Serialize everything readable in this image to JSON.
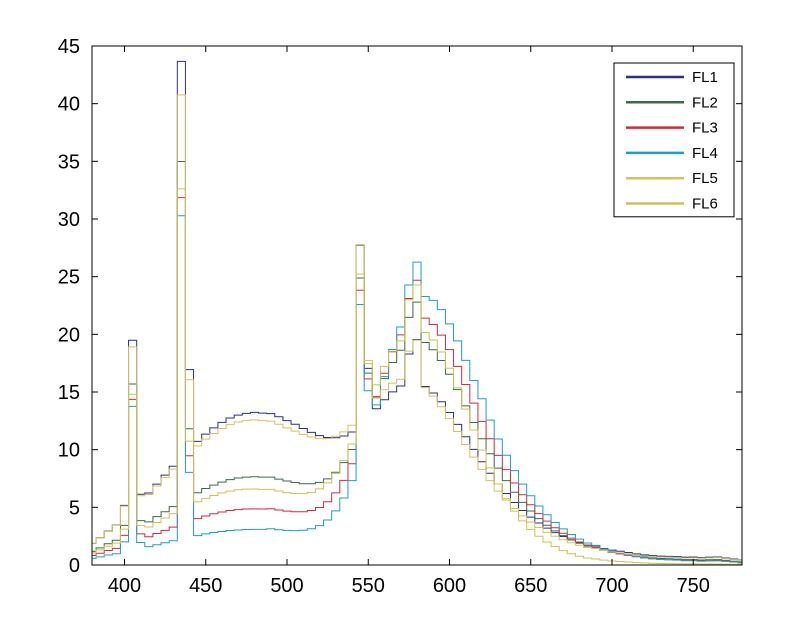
{
  "chart_data": {
    "type": "line",
    "title": "",
    "xlabel": "",
    "ylabel": "",
    "xlim": [
      380,
      780
    ],
    "ylim": [
      0,
      45
    ],
    "xticks": [
      400,
      450,
      500,
      550,
      600,
      650,
      700,
      750
    ],
    "yticks": [
      0,
      5,
      10,
      15,
      20,
      25,
      30,
      35,
      40,
      45
    ],
    "grid": false,
    "legend_position": "top-right",
    "step": 5,
    "x": [
      380,
      385,
      390,
      395,
      400,
      405,
      410,
      415,
      420,
      425,
      430,
      435,
      440,
      445,
      450,
      455,
      460,
      465,
      470,
      475,
      480,
      485,
      490,
      495,
      500,
      505,
      510,
      515,
      520,
      525,
      530,
      535,
      540,
      545,
      550,
      555,
      560,
      565,
      570,
      575,
      580,
      585,
      590,
      595,
      600,
      605,
      610,
      615,
      620,
      625,
      630,
      635,
      640,
      645,
      650,
      655,
      660,
      665,
      670,
      675,
      680,
      685,
      690,
      695,
      700,
      705,
      710,
      715,
      720,
      725,
      730,
      735,
      740,
      745,
      750,
      755,
      760,
      765,
      770,
      775,
      780
    ],
    "series": [
      {
        "name": "FL1",
        "color": "#2b2f8c",
        "values": [
          1.87,
          2.36,
          2.94,
          3.47,
          5.17,
          19.49,
          6.13,
          6.24,
          7.01,
          7.79,
          8.56,
          43.67,
          16.94,
          10.72,
          11.35,
          11.89,
          12.37,
          12.75,
          13.0,
          13.15,
          13.23,
          13.17,
          13.13,
          12.85,
          12.52,
          12.2,
          11.83,
          11.5,
          11.22,
          11.05,
          11.03,
          11.18,
          11.53,
          27.74,
          17.05,
          13.55,
          14.33,
          15.01,
          15.52,
          18.29,
          19.55,
          15.48,
          14.91,
          14.15,
          13.22,
          12.19,
          11.12,
          10.03,
          8.95,
          7.96,
          7.02,
          6.2,
          5.42,
          4.73,
          4.15,
          3.64,
          3.2,
          2.81,
          2.47,
          2.18,
          1.93,
          1.72,
          1.67,
          1.43,
          1.29,
          1.19,
          1.08,
          0.96,
          0.88,
          0.81,
          0.77,
          0.75,
          0.73,
          0.68,
          0.69,
          0.64,
          0.68,
          0.69,
          0.61,
          0.52,
          0.43
        ]
      },
      {
        "name": "FL2",
        "color": "#3b6b4a",
        "values": [
          1.18,
          1.48,
          1.84,
          2.15,
          3.44,
          15.69,
          3.85,
          3.74,
          4.19,
          4.62,
          5.06,
          34.98,
          11.81,
          6.27,
          6.63,
          6.93,
          7.19,
          7.4,
          7.54,
          7.62,
          7.65,
          7.62,
          7.62,
          7.45,
          7.28,
          7.15,
          7.05,
          7.04,
          7.16,
          7.47,
          8.04,
          8.88,
          10.01,
          24.88,
          16.64,
          14.59,
          16.16,
          17.56,
          18.62,
          21.47,
          22.79,
          19.29,
          18.66,
          17.73,
          16.54,
          15.21,
          13.8,
          12.36,
          10.95,
          9.65,
          8.4,
          7.32,
          6.31,
          5.43,
          4.68,
          4.02,
          3.45,
          2.96,
          2.55,
          2.19,
          1.89,
          1.64,
          1.53,
          1.27,
          1.1,
          0.99,
          0.88,
          0.76,
          0.68,
          0.61,
          0.56,
          0.54,
          0.51,
          0.47,
          0.47,
          0.43,
          0.46,
          0.47,
          0.4,
          0.33,
          0.27
        ]
      },
      {
        "name": "FL3",
        "color": "#d42a3a",
        "values": [
          0.82,
          1.02,
          1.26,
          1.44,
          2.57,
          14.36,
          2.7,
          2.45,
          2.73,
          3.0,
          3.28,
          31.85,
          9.47,
          4.02,
          4.25,
          4.44,
          4.59,
          4.72,
          4.8,
          4.86,
          4.87,
          4.85,
          4.88,
          4.77,
          4.67,
          4.62,
          4.62,
          4.73,
          4.99,
          5.48,
          6.25,
          7.34,
          8.78,
          23.82,
          16.14,
          14.59,
          16.63,
          18.49,
          19.95,
          23.11,
          24.69,
          21.41,
          20.85,
          19.93,
          18.67,
          17.22,
          15.65,
          14.04,
          12.45,
          10.95,
          9.51,
          8.27,
          7.11,
          6.09,
          5.22,
          4.45,
          3.8,
          3.23,
          2.75,
          2.33,
          1.99,
          1.7,
          1.55,
          1.27,
          1.09,
          0.96,
          0.83,
          0.71,
          0.62,
          0.54,
          0.49,
          0.46,
          0.43,
          0.39,
          0.39,
          0.35,
          0.38,
          0.39,
          0.33,
          0.28,
          0.21
        ]
      },
      {
        "name": "FL4",
        "color": "#1aa0c4",
        "values": [
          0.57,
          0.7,
          0.87,
          0.98,
          2.01,
          13.75,
          1.95,
          1.59,
          1.76,
          1.93,
          2.1,
          30.28,
          8.03,
          2.55,
          2.7,
          2.82,
          2.91,
          2.99,
          3.04,
          3.08,
          3.09,
          3.09,
          3.14,
          3.06,
          3.0,
          2.98,
          3.01,
          3.14,
          3.41,
          3.9,
          4.69,
          5.81,
          7.32,
          22.59,
          15.11,
          13.88,
          16.33,
          18.68,
          20.64,
          24.28,
          26.26,
          23.28,
          22.94,
          22.14,
          20.91,
          19.43,
          17.74,
          16.0,
          14.42,
          12.56,
          10.93,
          9.52,
          8.18,
          7.01,
          6.0,
          5.11,
          4.36,
          3.69,
          3.13,
          2.64,
          2.24,
          1.91,
          1.7,
          1.39,
          1.18,
          1.03,
          0.88,
          0.74,
          0.63,
          0.54,
          0.49,
          0.46,
          0.42,
          0.37,
          0.37,
          0.33,
          0.35,
          0.36,
          0.31,
          0.26,
          0.19
        ]
      },
      {
        "name": "FL5",
        "color": "#d4c35a",
        "values": [
          1.87,
          2.35,
          2.92,
          3.45,
          5.1,
          18.91,
          6.0,
          6.11,
          6.85,
          7.58,
          8.31,
          40.76,
          16.06,
          10.32,
          10.91,
          11.4,
          11.83,
          12.17,
          12.4,
          12.54,
          12.58,
          12.52,
          12.47,
          12.2,
          11.89,
          11.61,
          11.33,
          11.1,
          10.96,
          10.97,
          11.16,
          11.54,
          12.12,
          27.78,
          17.73,
          14.47,
          15.2,
          15.77,
          16.1,
          18.54,
          19.5,
          15.39,
          14.64,
          13.72,
          12.69,
          11.57,
          10.45,
          9.35,
          8.29,
          7.32,
          6.41,
          5.63,
          4.9,
          4.26,
          3.72,
          3.25,
          2.83,
          2.49,
          2.19,
          1.93,
          1.71,
          1.52,
          1.43,
          1.26,
          1.13,
          1.05,
          0.96,
          0.85,
          0.78,
          0.72,
          0.68,
          0.67,
          0.65,
          0.61,
          0.62,
          0.59,
          0.62,
          0.64,
          0.55,
          0.47,
          0.4
        ]
      },
      {
        "name": "FL6",
        "color": "#cdc34e",
        "values": [
          1.05,
          1.31,
          1.63,
          1.9,
          3.11,
          14.8,
          3.43,
          3.3,
          3.68,
          4.07,
          4.45,
          32.61,
          10.74,
          5.48,
          5.78,
          6.03,
          6.25,
          6.41,
          6.52,
          6.58,
          6.59,
          6.56,
          6.56,
          6.42,
          6.28,
          6.2,
          6.19,
          6.3,
          6.6,
          7.12,
          7.94,
          9.07,
          10.49,
          25.22,
          17.46,
          15.63,
          17.22,
          18.53,
          19.43,
          23.0,
          24.28,
          20.16,
          19.51,
          18.47,
          17.06,
          15.36,
          13.52,
          11.7,
          9.96,
          8.42,
          7.02,
          5.76,
          4.67,
          3.83,
          3.09,
          2.49,
          1.99,
          1.6,
          1.25,
          0.97,
          0.76,
          0.61,
          0.52,
          0.42,
          0.35,
          0.3,
          0.26,
          0.21,
          0.18,
          0.15,
          0.13,
          0.12,
          0.11,
          0.1,
          0.1,
          0.09,
          0.09,
          0.09,
          0.08,
          0.07,
          0.06
        ]
      }
    ]
  }
}
